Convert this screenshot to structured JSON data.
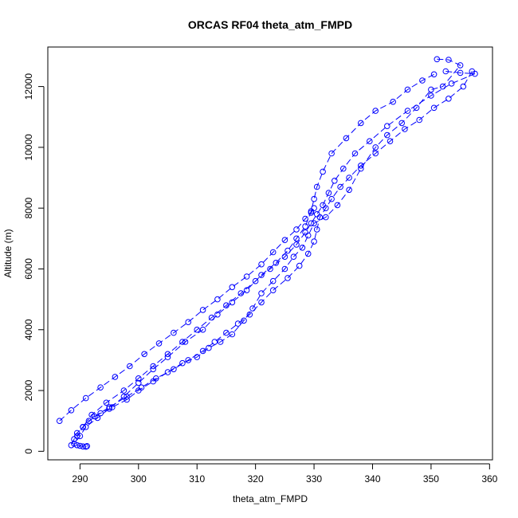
{
  "chart_data": {
    "type": "scatter",
    "title": "ORCAS RF04 theta_atm_FMPD",
    "xlabel": "theta_atm_FMPD",
    "ylabel": "Altitude (m)",
    "xlim": [
      284.5,
      360.5
    ],
    "ylim": [
      -280,
      13300
    ],
    "x_ticks": [
      290,
      300,
      310,
      320,
      330,
      340,
      350,
      360
    ],
    "y_ticks": [
      0,
      2000,
      4000,
      6000,
      8000,
      10000,
      12000
    ],
    "x_tick_labels": [
      "290",
      "300",
      "310",
      "320",
      "330",
      "340",
      "350",
      "360"
    ],
    "y_tick_labels": [
      "0",
      "2000",
      "4000",
      "6000",
      "8000",
      "10000",
      "12000"
    ],
    "grid": false,
    "legend": "none",
    "marker": "open-circle",
    "line_style": "dashed",
    "color": "#0000ff",
    "series": [
      {
        "x": [
          351.0,
          353.0,
          355.0,
          352.0,
          350.0,
          347.5,
          345.0,
          342.5,
          340.5,
          338.0,
          336.0,
          334.0,
          332.0,
          330.0,
          329.0,
          328.0,
          326.5,
          325.0,
          323.0,
          321.0,
          319.5,
          318.0,
          316.0,
          314.0,
          312.0,
          310.0,
          307.5,
          305.0,
          302.5,
          300.0,
          298.0,
          295.5,
          293.5,
          291.5,
          290.5,
          289.5,
          289.0,
          288.5
        ],
        "y": [
          12900,
          12880,
          12700,
          12000,
          11900,
          11300,
          10800,
          10400,
          10000,
          9300,
          8600,
          8100,
          7700,
          7500,
          7100,
          6700,
          6400,
          6000,
          5600,
          5200,
          4700,
          4300,
          3850,
          3600,
          3400,
          3100,
          2900,
          2600,
          2300,
          2000,
          1700,
          1450,
          1250,
          1000,
          800,
          600,
          400,
          200
        ]
      },
      {
        "x": [
          350.5,
          348.5,
          346.0,
          343.5,
          340.5,
          338.0,
          335.5,
          333.0,
          331.5,
          330.5,
          330.0,
          329.5,
          328.5,
          327.0,
          325.5,
          323.5,
          321.0,
          318.5,
          316.0,
          313.5,
          311.0,
          308.0,
          305.0,
          302.5,
          300.0,
          297.5,
          295.0,
          293.0,
          291.0,
          290.0,
          289.0
        ],
        "y": [
          12400,
          12200,
          11900,
          11500,
          11200,
          10800,
          10300,
          9800,
          9200,
          8700,
          8300,
          7900,
          7400,
          7000,
          6600,
          6200,
          5800,
          5300,
          4900,
          4500,
          4000,
          3600,
          3100,
          2700,
          2250,
          1800,
          1400,
          1100,
          800,
          500,
          250
        ]
      },
      {
        "x": [
          357.0,
          355.5,
          353.0,
          350.5,
          348.0,
          345.5,
          343.0,
          340.5,
          338.0,
          336.0,
          334.5,
          333.0,
          332.0,
          331.0,
          330.5,
          330.0,
          329.0,
          327.5,
          325.5,
          323.0,
          321.0,
          319.0,
          317.0,
          315.0,
          313.0,
          311.0,
          308.5,
          306.0,
          303.0,
          300.5,
          298.0,
          295.0,
          292.5,
          290.5,
          289.5
        ],
        "y": [
          12500,
          12000,
          11600,
          11300,
          10900,
          10600,
          10200,
          9800,
          9400,
          9000,
          8700,
          8300,
          8000,
          7700,
          7300,
          6900,
          6500,
          6100,
          5700,
          5300,
          4900,
          4500,
          4200,
          3900,
          3600,
          3300,
          3000,
          2700,
          2400,
          2100,
          1800,
          1450,
          1150,
          800,
          500
        ]
      },
      {
        "x": [
          352.5,
          355.0,
          357.5,
          353.5,
          350.0,
          346.0,
          342.5,
          339.5,
          337.0,
          335.0,
          333.5,
          332.5,
          331.5,
          330.5,
          329.5,
          328.5,
          327.0,
          325.0,
          322.5,
          320.0,
          317.5,
          315.0,
          312.5,
          310.0,
          307.5,
          305.0,
          302.5,
          300.0,
          297.5,
          294.5,
          292.0,
          290.5
        ],
        "y": [
          12500,
          12450,
          12420,
          12100,
          11700,
          11200,
          10700,
          10200,
          9800,
          9300,
          8900,
          8500,
          8100,
          7800,
          7500,
          7200,
          6800,
          6400,
          6000,
          5600,
          5200,
          4800,
          4400,
          4000,
          3600,
          3200,
          2800,
          2400,
          2000,
          1600,
          1200,
          800
        ]
      },
      {
        "x": [
          286.5,
          288.5,
          291.0,
          293.5,
          296.0,
          298.5,
          301.0,
          303.5,
          306.0,
          308.5,
          311.0,
          313.5,
          316.0,
          318.5,
          321.0,
          323.0,
          325.0,
          327.0,
          328.5,
          329.5,
          330.0
        ],
        "y": [
          1000,
          1350,
          1750,
          2100,
          2450,
          2800,
          3200,
          3550,
          3900,
          4250,
          4650,
          5000,
          5400,
          5750,
          6150,
          6550,
          6950,
          7300,
          7650,
          7850,
          8000
        ]
      },
      {
        "x": [
          289.5,
          290.0,
          290.5,
          291.0,
          291.2
        ],
        "y": [
          200,
          180,
          160,
          150,
          170
        ]
      }
    ]
  }
}
